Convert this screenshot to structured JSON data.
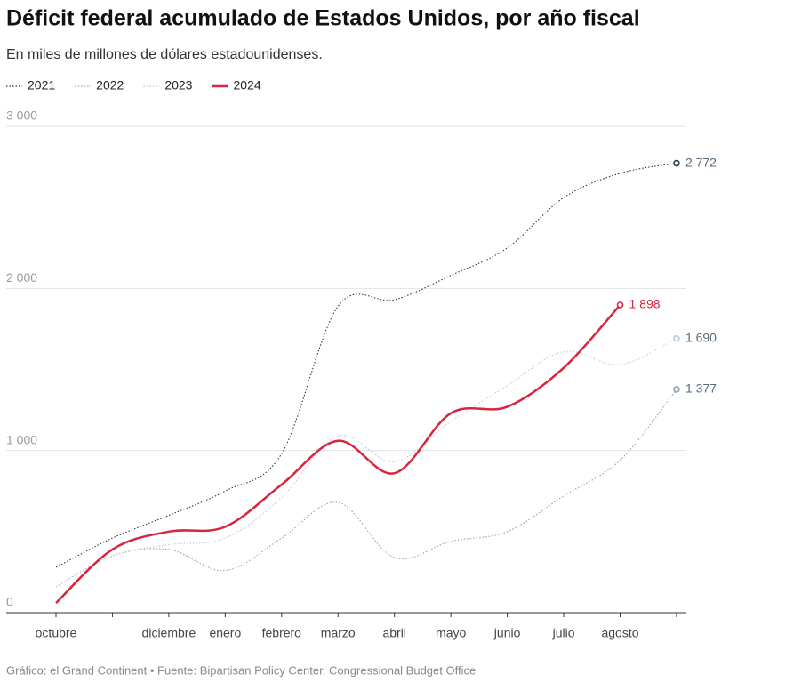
{
  "chart_data": {
    "type": "line",
    "title": "Déficit federal acumulado de Estados Unidos, por año fiscal",
    "subtitle": "En miles de millones de dólares estadounidenses.",
    "source": "Gráfico: el Grand Continent • Fuente: Bipartisan Policy Center, Congressional Budget Office",
    "categories": [
      "octubre",
      null,
      "diciembre",
      "enero",
      "febrero",
      "marzo",
      "abril",
      "mayo",
      "junio",
      "julio",
      "agosto",
      null
    ],
    "ylim": [
      0,
      3000
    ],
    "yticks": [
      {
        "value": 0,
        "label": "0"
      },
      {
        "value": 1000,
        "label": "1 000"
      },
      {
        "value": 2000,
        "label": "2 000"
      },
      {
        "value": 3000,
        "label": "3 000"
      }
    ],
    "grid": true,
    "series": [
      {
        "name": "2021",
        "color": "#2b3a4a",
        "style": "dotted",
        "values": [
          280,
          460,
          600,
          750,
          980,
          1890,
          1930,
          2080,
          2250,
          2560,
          2710,
          2772
        ],
        "value_labels": [
          null,
          null,
          null,
          null,
          null,
          null,
          null,
          null,
          null,
          null,
          null,
          "2 772"
        ]
      },
      {
        "name": "2022",
        "color": "#8fa3b8",
        "style": "dotted",
        "values": [
          160,
          350,
          390,
          260,
          460,
          680,
          340,
          440,
          500,
          720,
          940,
          1377
        ],
        "value_labels": [
          null,
          null,
          null,
          null,
          null,
          null,
          null,
          null,
          null,
          null,
          null,
          "1 377"
        ]
      },
      {
        "name": "2023",
        "color": "#b9cad8",
        "style": "dotted",
        "values": [
          160,
          350,
          420,
          460,
          710,
          1090,
          930,
          1180,
          1400,
          1610,
          1530,
          1690
        ],
        "value_labels": [
          null,
          null,
          null,
          null,
          null,
          null,
          null,
          null,
          null,
          null,
          null,
          "1 690"
        ]
      },
      {
        "name": "2024",
        "color": "#d7263d",
        "style": "solid",
        "values": [
          60,
          390,
          500,
          530,
          790,
          1060,
          860,
          1230,
          1270,
          1510,
          1898,
          null
        ],
        "value_labels": [
          null,
          null,
          null,
          null,
          null,
          null,
          null,
          null,
          null,
          null,
          "1 898",
          null
        ]
      }
    ]
  }
}
